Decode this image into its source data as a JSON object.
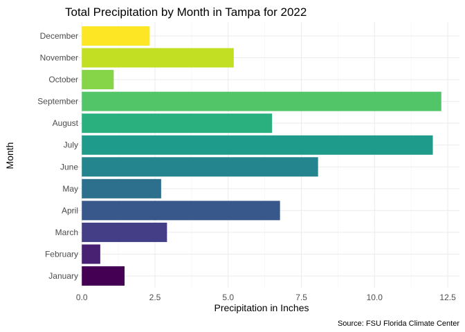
{
  "chart_data": {
    "type": "bar",
    "orientation": "horizontal",
    "title": "Total Precipitation by Month in Tampa for 2022",
    "xlabel": "Precipitation in Inches",
    "ylabel": "Month",
    "caption": "Source: FSU Florida Climate Center",
    "categories": [
      "January",
      "February",
      "March",
      "April",
      "May",
      "June",
      "July",
      "August",
      "September",
      "October",
      "November",
      "December"
    ],
    "values": [
      1.46,
      0.63,
      2.91,
      6.77,
      2.71,
      8.07,
      11.99,
      6.5,
      12.28,
      1.09,
      5.19,
      2.32
    ],
    "xlim": [
      -0.62,
      12.9
    ],
    "xticks": [
      0,
      2.5,
      5,
      7.5,
      10,
      12.5
    ],
    "xtick_labels": [
      "0.0",
      "2.5",
      "5.0",
      "7.5",
      "10.0",
      "12.5"
    ],
    "colors": [
      "#440154",
      "#482173",
      "#433e85",
      "#38588c",
      "#2d708e",
      "#25858e",
      "#1e9b8a",
      "#2ab07f",
      "#52c569",
      "#86d549",
      "#c2df23",
      "#fde725"
    ],
    "grid": true,
    "legend": "none",
    "theme": "minimal"
  }
}
